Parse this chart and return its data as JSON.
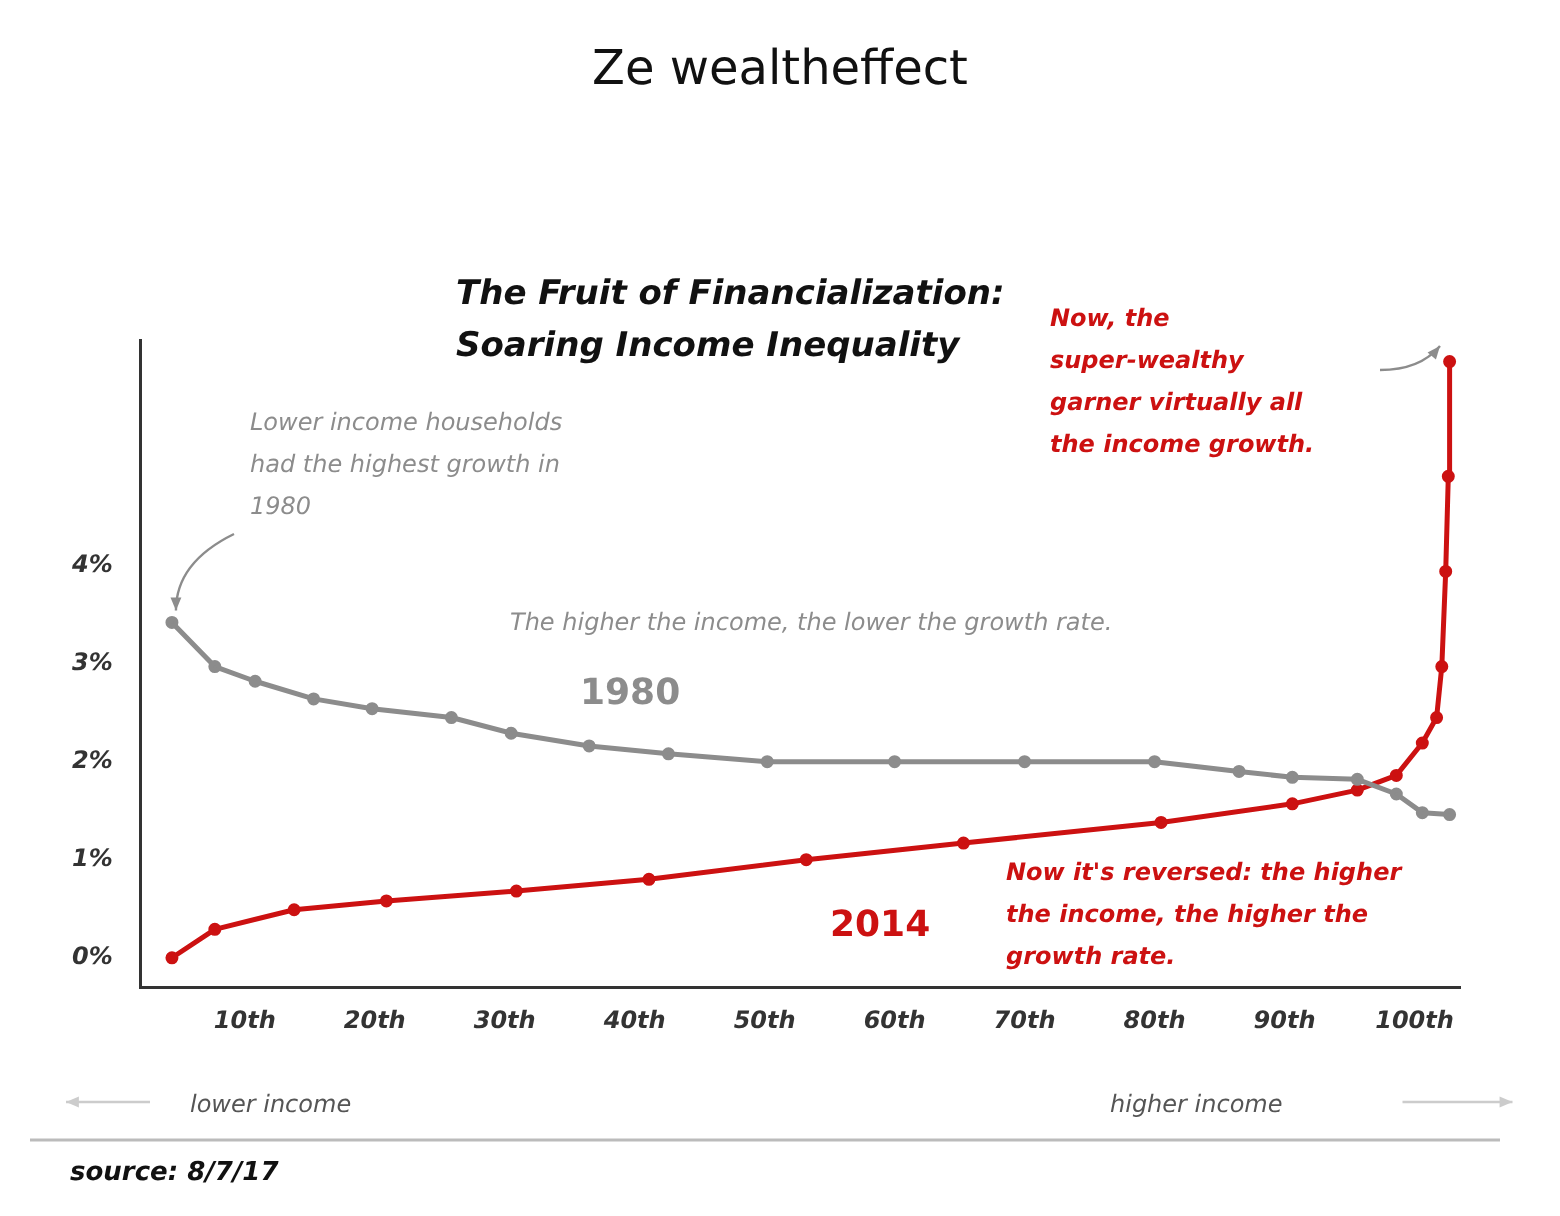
{
  "chart_data": {
    "type": "line",
    "title": "Ze wealtheffect",
    "subtitle": "The Fruit of Financialization: Soaring Income Inequality",
    "xlim": [
      2,
      103.5
    ],
    "ylim": [
      -0.3,
      6.3
    ],
    "xticks": [
      {
        "value": 10,
        "label": "10th"
      },
      {
        "value": 20,
        "label": "20th"
      },
      {
        "value": 30,
        "label": "30th"
      },
      {
        "value": 40,
        "label": "40th"
      },
      {
        "value": 50,
        "label": "50th"
      },
      {
        "value": 60,
        "label": "60th"
      },
      {
        "value": 70,
        "label": "70th"
      },
      {
        "value": 80,
        "label": "80th"
      },
      {
        "value": 90,
        "label": "90th"
      },
      {
        "value": 100,
        "label": "100th"
      }
    ],
    "yticks": [
      {
        "value": 0,
        "label": "0%"
      },
      {
        "value": 1,
        "label": "1%"
      },
      {
        "value": 2,
        "label": "2%"
      },
      {
        "value": 3,
        "label": "3%"
      },
      {
        "value": 4,
        "label": "4%"
      }
    ],
    "marker": "circle",
    "line_style": "solid",
    "series": [
      {
        "name": "1980",
        "color": "#8c8c8c",
        "x": [
          4.4,
          7.7,
          10.8,
          15.3,
          19.8,
          25.9,
          30.5,
          36.5,
          42.6,
          50.2,
          60,
          70,
          80,
          86.5,
          90.6,
          95.6,
          98.6,
          100.6,
          102.7
        ],
        "values": [
          3.42,
          2.97,
          2.82,
          2.64,
          2.54,
          2.45,
          2.29,
          2.16,
          2.08,
          2.0,
          2.0,
          2.0,
          2.0,
          1.9,
          1.84,
          1.82,
          1.67,
          1.48,
          1.46
        ]
      },
      {
        "name": "2014",
        "color": "#cc1111",
        "x": [
          4.4,
          7.7,
          13.8,
          20.9,
          30.9,
          41.1,
          53.2,
          65.3,
          80.5,
          90.6,
          95.6,
          98.6,
          100.6,
          101.7,
          102.1,
          102.4,
          102.6,
          102.7
        ],
        "values": [
          0,
          0.29,
          0.49,
          0.58,
          0.68,
          0.8,
          1.0,
          1.17,
          1.38,
          1.57,
          1.71,
          1.86,
          2.19,
          2.45,
          2.97,
          3.94,
          4.91,
          6.08
        ]
      }
    ],
    "annotations": [
      {
        "text": "Lower income households had the highest growth in 1980",
        "x": 4.4,
        "y": 3.42
      },
      "The higher the income, the lower the growth rate.",
      "Now, the super-wealthy garner virtually all the income growth.",
      "Now it's reversed: the higher the income, the higher the growth rate.",
      "lower income",
      "higher income",
      "source: 8/7/17"
    ]
  }
}
